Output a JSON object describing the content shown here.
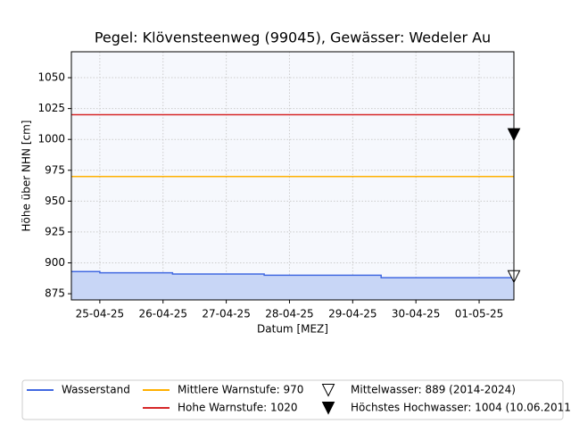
{
  "chart_data": {
    "type": "line",
    "title": "Pegel:  Klövensteenweg (99045), Gewässer:  Wedeler Au",
    "x_label": "Datum [MEZ]",
    "y_label": "Höhe über NHN [cm]",
    "xlim": [
      0.55,
      7.55
    ],
    "xticks": [
      {
        "value": 1,
        "label": "25-04-25"
      },
      {
        "value": 2,
        "label": "26-04-25"
      },
      {
        "value": 3,
        "label": "27-04-25"
      },
      {
        "value": 4,
        "label": "28-04-25"
      },
      {
        "value": 5,
        "label": "29-04-25"
      },
      {
        "value": 6,
        "label": "30-04-25"
      },
      {
        "value": 7,
        "label": "01-05-25"
      }
    ],
    "ylim": [
      870,
      1071
    ],
    "yticks": [
      875,
      900,
      925,
      950,
      975,
      1000,
      1025,
      1050
    ],
    "grid": true,
    "series": [
      {
        "name": "Wasserstand",
        "color": "#4169e1",
        "fill": "#c8d6f6",
        "x": [
          0.55,
          1.0,
          1.0,
          2.15,
          2.15,
          3.6,
          3.6,
          5.45,
          5.45,
          7.55
        ],
        "values": [
          893,
          893,
          892,
          892,
          891,
          891,
          890,
          890,
          888,
          888
        ]
      }
    ],
    "hlines": [
      {
        "name": "Mittlere Warnstufe: 970",
        "value": 970,
        "color": "#ffb000"
      },
      {
        "name": "Hohe Warnstufe: 1020",
        "value": 1020,
        "color": "#d62728"
      }
    ],
    "markers": [
      {
        "name": "Mittelwasser: 889 (2014-2024)",
        "value": 889,
        "filled": false
      },
      {
        "name": "Höchstes Hochwasser: 1004 (10.06.2011)",
        "value": 1004,
        "filled": true
      }
    ]
  }
}
